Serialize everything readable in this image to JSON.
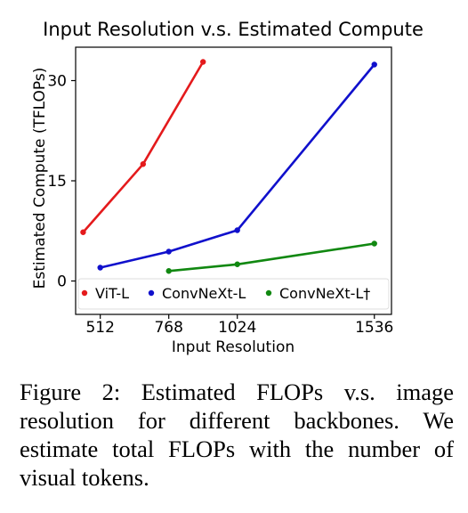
{
  "chart_data": {
    "type": "line",
    "title": "Input Resolution v.s. Estimated Compute",
    "xlabel": "Input Resolution",
    "ylabel": "Estimated Compute (TFLOPs)",
    "xlim": [
      420,
      1600
    ],
    "ylim": [
      -5,
      35
    ],
    "xticks": [
      512,
      768,
      1024,
      1536
    ],
    "yticks": [
      0,
      15,
      30
    ],
    "grid": false,
    "legend_position": "bottom",
    "series": [
      {
        "name": "ViT-L",
        "color": "#e41a1c",
        "x": [
          448,
          672,
          896
        ],
        "y": [
          7.3,
          17.5,
          32.8
        ]
      },
      {
        "name": "ConvNeXt-L",
        "color": "#1010cc",
        "x": [
          512,
          768,
          1024,
          1536
        ],
        "y": [
          2.0,
          4.4,
          7.6,
          32.4
        ]
      },
      {
        "name": "ConvNeXt-L†",
        "color": "#118811",
        "x": [
          768,
          1024,
          1536
        ],
        "y": [
          1.5,
          2.5,
          5.6
        ]
      }
    ]
  },
  "caption": "Figure 2: Estimated FLOPs v.s. image resolution for different backbones. We estimate total FLOPs with the number of visual tokens."
}
